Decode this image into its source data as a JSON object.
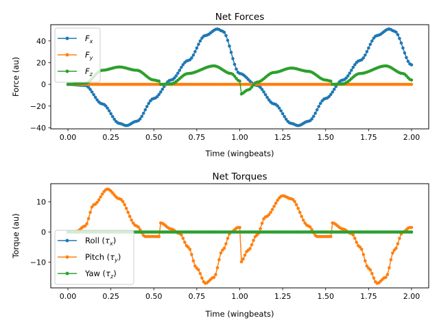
{
  "chart_data": [
    {
      "type": "line",
      "title": "Net Forces",
      "xlabel": "Time (wingbeats)",
      "ylabel": "Force (au)",
      "xlim": [
        -0.1,
        2.1
      ],
      "ylim": [
        -41,
        55
      ],
      "xticks": [
        0.0,
        0.25,
        0.5,
        0.75,
        1.0,
        1.25,
        1.5,
        1.75,
        2.0
      ],
      "xtick_labels": [
        "0.00",
        "0.25",
        "0.50",
        "0.75",
        "1.00",
        "1.25",
        "1.50",
        "1.75",
        "2.00"
      ],
      "yticks": [
        -40,
        -20,
        0,
        20,
        40
      ],
      "ytick_labels": [
        "−40",
        "−20",
        "0",
        "20",
        "40"
      ],
      "grid": false,
      "legend_position": "upper-left",
      "markers": true,
      "sample_count_per_series": 201,
      "series": [
        {
          "name": "F_x",
          "legend_label": "Fx",
          "color": "#1f77b4",
          "x": [
            0.0,
            0.1,
            0.2,
            0.3,
            0.34,
            0.4,
            0.5,
            0.6,
            0.7,
            0.8,
            0.87,
            0.9,
            1.0,
            1.1,
            1.2,
            1.3,
            1.34,
            1.4,
            1.5,
            1.6,
            1.7,
            1.8,
            1.87,
            1.9,
            2.0
          ],
          "values": [
            0,
            -1,
            -18,
            -36,
            -38,
            -34,
            -13,
            4,
            22,
            45,
            51,
            49,
            10,
            -1,
            -18,
            -36,
            -38,
            -34,
            -13,
            4,
            22,
            45,
            51,
            49,
            18
          ]
        },
        {
          "name": "F_y",
          "legend_label": "Fy",
          "color": "#ff7f0e",
          "x": [
            0.0,
            2.0
          ],
          "values": [
            0,
            0
          ]
        },
        {
          "name": "F_z",
          "legend_label": "Fz",
          "color": "#2ca02c",
          "x": [
            0.0,
            0.1,
            0.2,
            0.3,
            0.4,
            0.5,
            0.53,
            0.54,
            0.6,
            0.7,
            0.85,
            0.95,
            1.0,
            1.005,
            1.05,
            1.1,
            1.2,
            1.3,
            1.4,
            1.5,
            1.53,
            1.54,
            1.6,
            1.7,
            1.85,
            1.95,
            2.0
          ],
          "values": [
            0,
            1,
            13,
            16,
            13,
            4,
            3,
            0,
            0.5,
            10,
            17,
            10,
            3,
            -9,
            -5,
            2,
            11,
            15,
            12,
            4,
            3,
            0,
            0.5,
            10,
            17,
            10,
            4
          ]
        }
      ]
    },
    {
      "type": "line",
      "title": "Net Torques",
      "xlabel": "Time (wingbeats)",
      "ylabel": "Torque (au)",
      "xlim": [
        -0.1,
        2.1
      ],
      "ylim": [
        -18.5,
        16
      ],
      "xticks": [
        0.0,
        0.25,
        0.5,
        0.75,
        1.0,
        1.25,
        1.5,
        1.75,
        2.0
      ],
      "xtick_labels": [
        "0.00",
        "0.25",
        "0.50",
        "0.75",
        "1.00",
        "1.25",
        "1.50",
        "1.75",
        "2.00"
      ],
      "yticks": [
        -10,
        0,
        10
      ],
      "ytick_labels": [
        "−10",
        "0",
        "10"
      ],
      "grid": false,
      "legend_position": "lower-left",
      "markers": true,
      "sample_count_per_series": 201,
      "series": [
        {
          "name": "Roll (τx)",
          "legend_label": "Roll (τx)",
          "color": "#1f77b4",
          "x": [
            0.0,
            2.0
          ],
          "values": [
            0,
            0
          ]
        },
        {
          "name": "Pitch (τy)",
          "legend_label": "Pitch (τy)",
          "color": "#ff7f0e",
          "x": [
            0.0,
            0.05,
            0.1,
            0.15,
            0.23,
            0.3,
            0.4,
            0.45,
            0.53,
            0.54,
            0.6,
            0.65,
            0.7,
            0.75,
            0.8,
            0.85,
            0.9,
            0.95,
            0.99,
            1.0,
            1.005,
            1.05,
            1.1,
            1.15,
            1.25,
            1.3,
            1.4,
            1.45,
            1.53,
            1.54,
            1.6,
            1.65,
            1.7,
            1.75,
            1.8,
            1.85,
            1.9,
            1.95,
            1.99,
            2.0
          ],
          "values": [
            0,
            0.2,
            2,
            9,
            14.2,
            11,
            2,
            -1.5,
            -1.5,
            3,
            1,
            -0.5,
            -5,
            -12,
            -17,
            -15,
            -6,
            0,
            1.5,
            1.5,
            -10,
            -6,
            -1,
            5,
            12,
            11,
            2,
            -1.5,
            -1.5,
            3,
            1,
            -0.5,
            -5,
            -12,
            -17,
            -15,
            -6,
            0,
            1.5,
            1.5
          ]
        },
        {
          "name": "Yaw (τz)",
          "legend_label": "Yaw (τz)",
          "color": "#2ca02c",
          "x": [
            0.0,
            2.0
          ],
          "values": [
            0,
            0
          ]
        }
      ]
    }
  ],
  "legend_text": {
    "fx_main": "F",
    "fx_sub": "x",
    "fy_main": "F",
    "fy_sub": "y",
    "fz_main": "F",
    "fz_sub": "z",
    "roll_pre": "Roll (",
    "roll_tau": "τ",
    "roll_sub": "x",
    "roll_post": ")",
    "pitch_pre": "Pitch (",
    "pitch_tau": "τ",
    "pitch_sub": "y",
    "pitch_post": ")",
    "yaw_pre": "Yaw (",
    "yaw_tau": "τ",
    "yaw_sub": "z",
    "yaw_post": ")"
  }
}
